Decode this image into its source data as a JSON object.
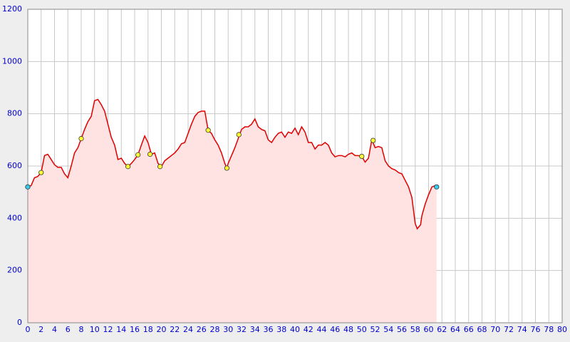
{
  "chart_data": {
    "type": "area",
    "xlim": [
      0,
      80
    ],
    "ylim": [
      0,
      1200
    ],
    "xticks": [
      0,
      2,
      4,
      6,
      8,
      10,
      12,
      14,
      16,
      18,
      20,
      22,
      24,
      26,
      28,
      30,
      32,
      34,
      36,
      38,
      40,
      42,
      44,
      46,
      48,
      50,
      52,
      54,
      56,
      58,
      60,
      62,
      64,
      66,
      68,
      70,
      72,
      74,
      76,
      78,
      80
    ],
    "yticks": [
      0,
      200,
      400,
      600,
      800,
      1000,
      1200
    ],
    "grid": true,
    "line_color": "#e00000",
    "fill_color": "#ffe2e2",
    "x": [
      0,
      0.5,
      1,
      1.5,
      2,
      2.5,
      3,
      3.5,
      4,
      4.5,
      5,
      5.5,
      6,
      6.5,
      7,
      7.5,
      8,
      8.5,
      9,
      9.5,
      10,
      10.5,
      11,
      11.5,
      12,
      12.5,
      13,
      13.5,
      14,
      14.5,
      15,
      15.5,
      16,
      16.5,
      17,
      17.5,
      18,
      18.5,
      19,
      19.5,
      20,
      20.5,
      21,
      21.5,
      22,
      22.5,
      23,
      23.5,
      24,
      24.5,
      25,
      25.5,
      26,
      26.5,
      27,
      27.5,
      28,
      28.5,
      29,
      29.5,
      29.8,
      30,
      30.5,
      31,
      31.5,
      32,
      32.5,
      33,
      33.5,
      34,
      34.5,
      35,
      35.5,
      36,
      36.5,
      37,
      37.5,
      38,
      38.5,
      39,
      39.5,
      40,
      40.5,
      41,
      41.5,
      42,
      42.5,
      43,
      43.5,
      44,
      44.5,
      45,
      45.5,
      46,
      46.5,
      47,
      47.5,
      48,
      48.5,
      49,
      49.5,
      50,
      50.5,
      51,
      51.5,
      52,
      52.5,
      53,
      53.5,
      54,
      54.5,
      55,
      55.5,
      56,
      56.5,
      57,
      57.5,
      58,
      58.3,
      58.8,
      59,
      59.5,
      60,
      60.5,
      61,
      61.2
    ],
    "values": [
      520,
      525,
      555,
      560,
      575,
      640,
      645,
      625,
      605,
      595,
      595,
      570,
      555,
      600,
      650,
      670,
      705,
      740,
      770,
      790,
      850,
      855,
      835,
      810,
      760,
      710,
      680,
      625,
      630,
      610,
      598,
      610,
      625,
      643,
      680,
      715,
      690,
      645,
      650,
      610,
      598,
      620,
      630,
      640,
      650,
      665,
      685,
      690,
      725,
      760,
      790,
      805,
      810,
      810,
      737,
      725,
      700,
      680,
      650,
      610,
      592,
      610,
      640,
      670,
      705,
      740,
      750,
      750,
      760,
      780,
      750,
      740,
      735,
      700,
      690,
      710,
      725,
      730,
      710,
      730,
      725,
      745,
      720,
      750,
      730,
      690,
      690,
      665,
      680,
      680,
      690,
      680,
      650,
      635,
      640,
      640,
      635,
      645,
      650,
      640,
      640,
      637,
      615,
      630,
      700,
      670,
      675,
      670,
      620,
      600,
      590,
      585,
      575,
      570,
      545,
      520,
      480,
      380,
      360,
      375,
      410,
      455,
      490,
      520,
      525,
      520
    ],
    "markers": {
      "x": [
        0,
        2,
        8,
        15,
        16.5,
        18.3,
        19.8,
        27,
        29.8,
        31.6,
        50,
        51.7,
        61.2
      ],
      "values": [
        520,
        575,
        705,
        598,
        643,
        645,
        598,
        737,
        592,
        720,
        637,
        698,
        520
      ],
      "colors": [
        "#33ccee",
        "#ffff33",
        "#ffff33",
        "#ffff33",
        "#ffff33",
        "#ffff33",
        "#ffff33",
        "#ffff33",
        "#ffff33",
        "#ffff33",
        "#ffff33",
        "#ffff33",
        "#33ccee"
      ]
    }
  }
}
